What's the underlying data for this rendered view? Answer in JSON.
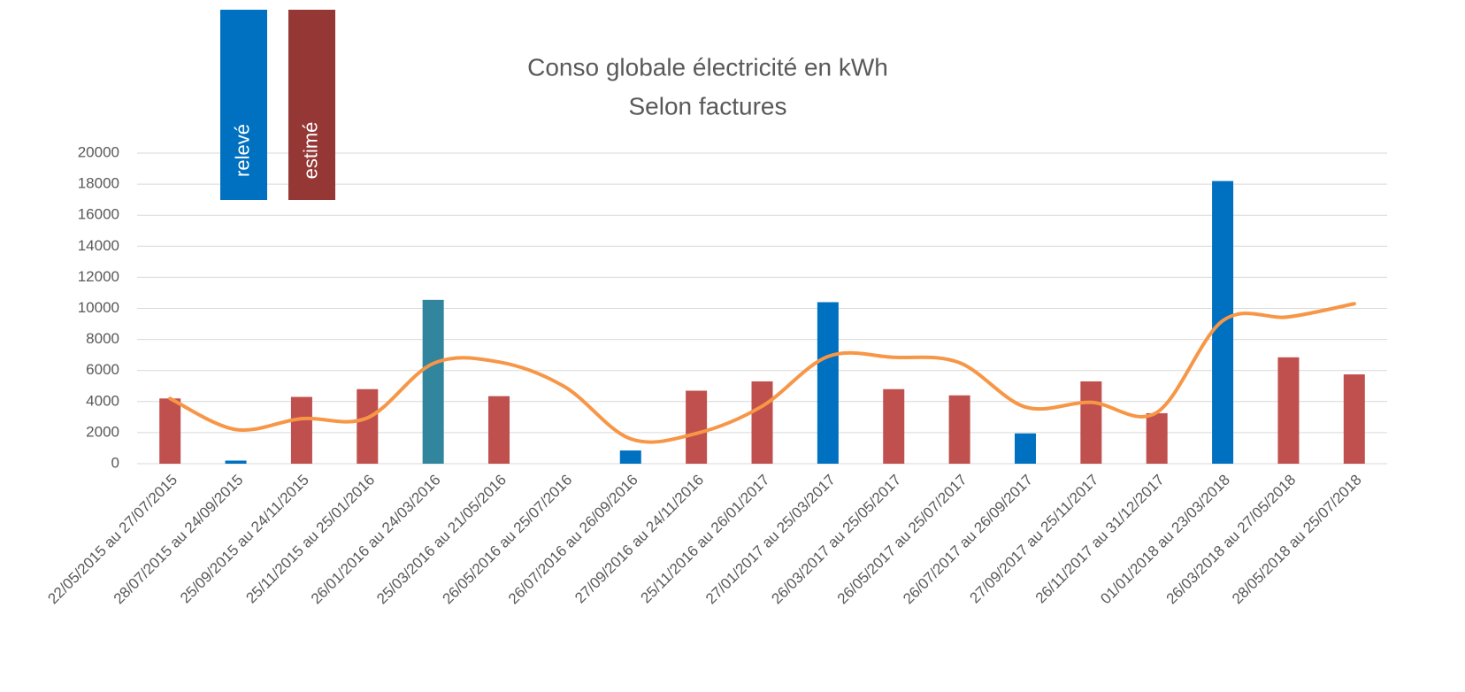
{
  "chart_data": {
    "type": "bar",
    "title": [
      "Conso globale électricité en kWh",
      "Selon factures"
    ],
    "categories": [
      "22/05/2015 au 27/07/2015",
      "28/07/2015 au 24/09/2015",
      "25/09/2015 au 24/11/2015",
      "25/11/2015 au 25/01/2016",
      "26/01/2016 au 24/03/2016",
      "25/03/2016 au 21/05/2016",
      "26/05/2016 au 25/07/2016",
      "26/07/2016 au 26/09/2016",
      "27/09/2016 au 24/11/2016",
      "25/11/2016 au 26/01/2017",
      "27/01/2017 au 25/03/2017",
      "26/03/2017 au 25/05/2017",
      "26/05/2017 au 25/07/2017",
      "26/07/2017 au 26/09/2017",
      "27/09/2017 au 25/11/2017",
      "26/11/2017 au 31/12/2017",
      "01/01/2018 au 23/03/2018",
      "26/03/2018 au 27/05/2018",
      "28/05/2018 au 25/07/2018"
    ],
    "values": [
      4200,
      200,
      4300,
      4800,
      10550,
      4350,
      null,
      850,
      4700,
      5300,
      10400,
      4800,
      4400,
      1950,
      5300,
      3250,
      18200,
      6850,
      5750
    ],
    "colors": [
      "#c0504d",
      "#0070c0",
      "#c0504d",
      "#c0504d",
      "#31859c",
      "#c0504d",
      "#c0504d",
      "#0070c0",
      "#c0504d",
      "#c0504d",
      "#0070c0",
      "#c0504d",
      "#c0504d",
      "#0070c0",
      "#c0504d",
      "#c0504d",
      "#0070c0",
      "#c0504d",
      "#c0504d"
    ],
    "line": {
      "color": "#f79646",
      "values": [
        4200,
        2200,
        2900,
        2950,
        6450,
        6550,
        4950,
        1600,
        1950,
        3700,
        6900,
        6850,
        6500,
        3650,
        3950,
        3300,
        9200,
        9450,
        10300
      ]
    },
    "legend": [
      {
        "label": "relevé",
        "color": "#0070c0"
      },
      {
        "label": "estimé",
        "color": "#953735"
      }
    ],
    "ylim": [
      0,
      20000
    ],
    "yticks": [
      0,
      2000,
      4000,
      6000,
      8000,
      10000,
      12000,
      14000,
      16000,
      18000,
      20000
    ],
    "grid": true
  }
}
